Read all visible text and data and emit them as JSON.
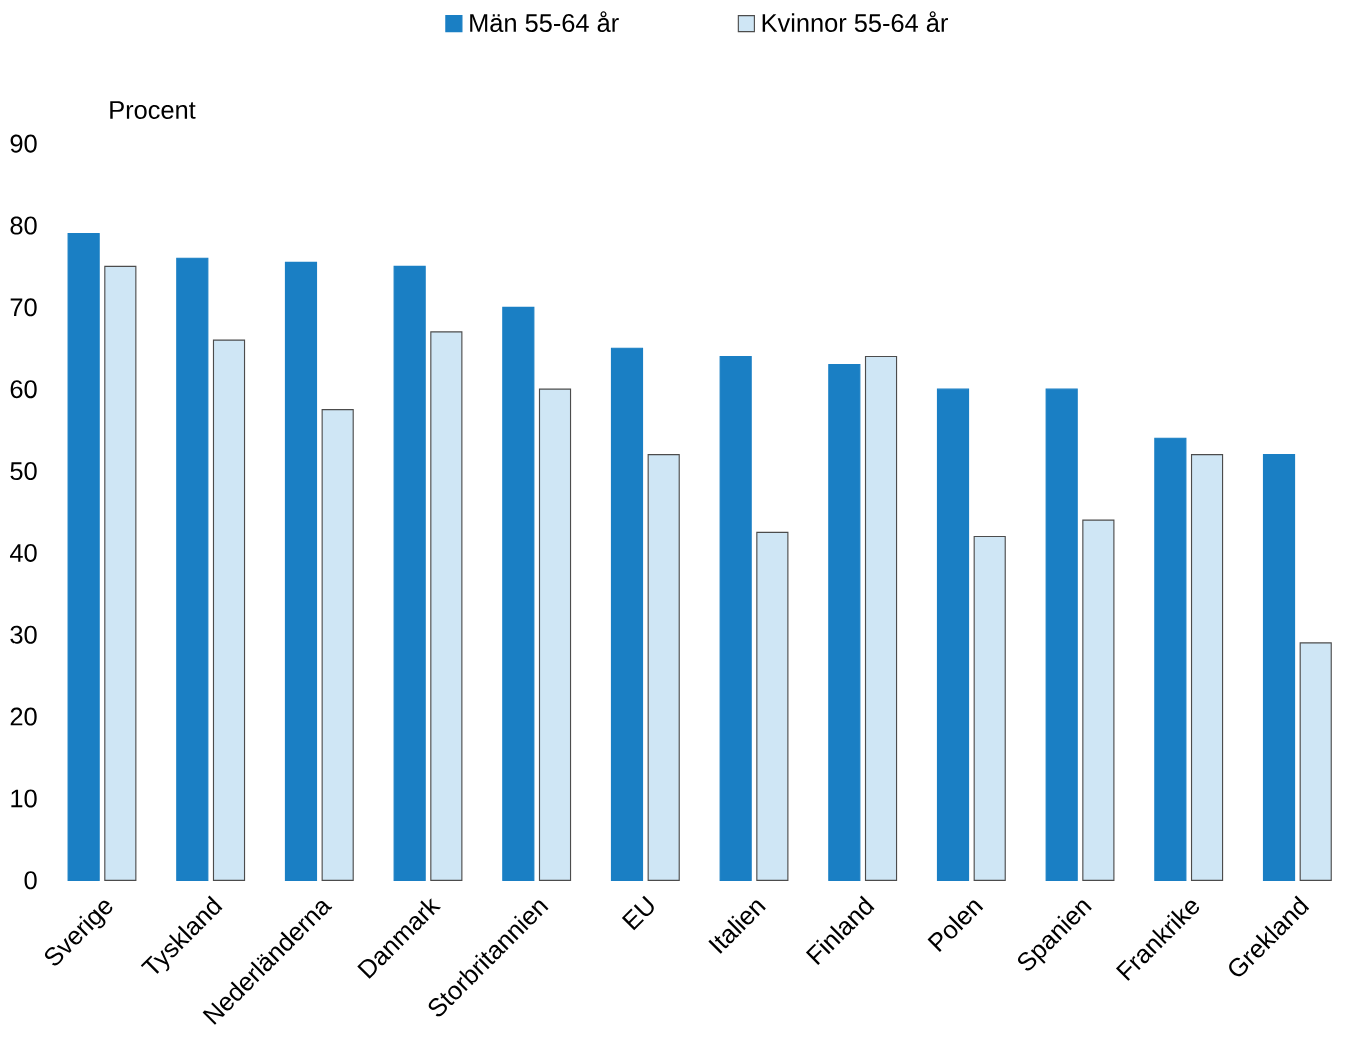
{
  "chart_data": {
    "type": "bar",
    "ylabel": "Procent",
    "categories": [
      "Sverige",
      "Tyskland",
      "Nederländerna",
      "Danmark",
      "Storbritannien",
      "EU",
      "Italien",
      "Finland",
      "Polen",
      "Spanien",
      "Frankrike",
      "Grekland"
    ],
    "series": [
      {
        "name": "Män 55-64 år",
        "color": "#1a7fc4",
        "values": [
          79,
          76,
          75.5,
          75,
          70,
          65,
          64,
          63,
          60,
          60,
          54,
          52
        ]
      },
      {
        "name": "Kvinnor 55-64 år",
        "color": "#cfe6f5",
        "values": [
          75,
          66,
          57.5,
          67,
          60,
          52,
          42.5,
          64,
          42,
          44,
          52,
          29
        ]
      }
    ],
    "ylim": [
      0,
      90
    ],
    "yticks": [
      0,
      10,
      20,
      30,
      40,
      50,
      60,
      70,
      80,
      90
    ],
    "grid": false,
    "legend": "top"
  }
}
